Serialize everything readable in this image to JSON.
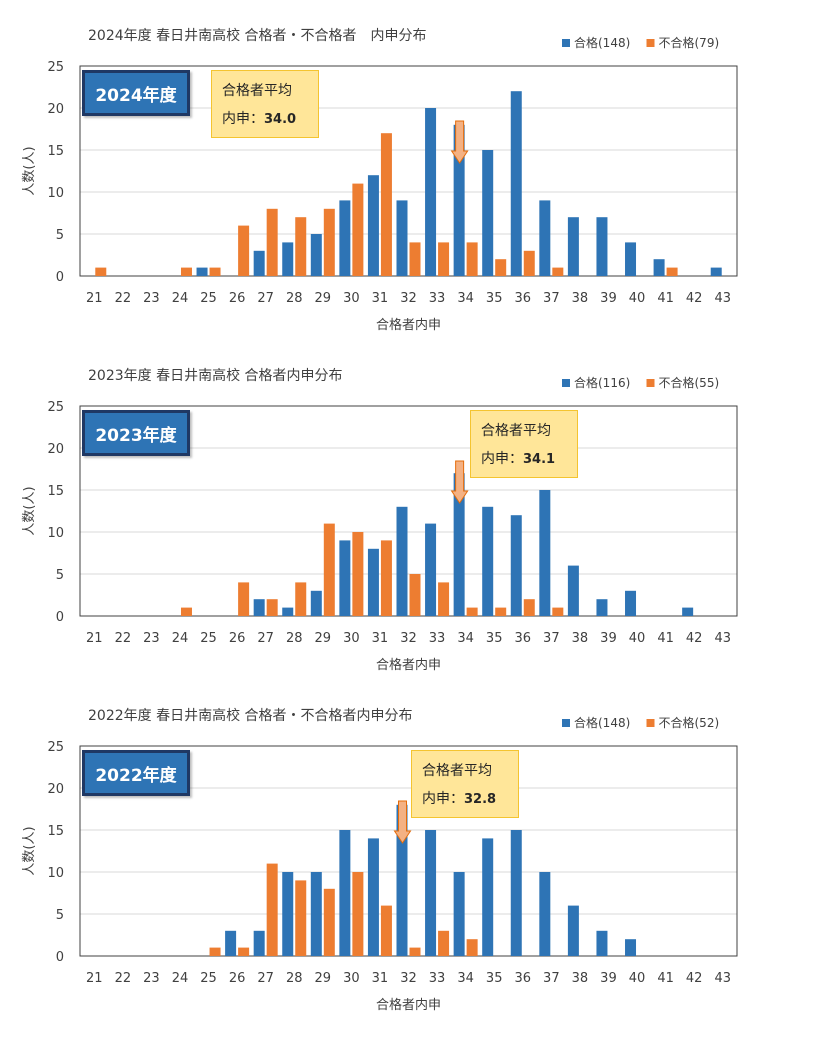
{
  "colors": {
    "pass": "#2e74b5",
    "fail": "#ed7d31",
    "badge": "#2e74b5",
    "avg_box": "#ffe699",
    "arrow": "#f4b183"
  },
  "chart_data": [
    {
      "type": "bar",
      "title": "2024年度 春日井南高校 合格者・不合格者　内申分布",
      "badge": "2024年度",
      "avg_label": "合格者平均",
      "avg_value_label": "内申：",
      "avg_value": "34.0",
      "xlabel": "合格者内申",
      "ylabel": "人数(人)",
      "ylim": [
        0,
        25
      ],
      "yticks": [
        "0",
        "5",
        "10",
        "15",
        "20",
        "25"
      ],
      "categories": [
        "21",
        "22",
        "23",
        "24",
        "25",
        "26",
        "27",
        "28",
        "29",
        "30",
        "31",
        "32",
        "33",
        "34",
        "35",
        "36",
        "37",
        "38",
        "39",
        "40",
        "41",
        "42",
        "43"
      ],
      "series": [
        {
          "name": "合格(148)",
          "values": [
            0,
            0,
            0,
            0,
            1,
            0,
            3,
            4,
            5,
            9,
            12,
            9,
            20,
            18,
            15,
            22,
            9,
            7,
            7,
            4,
            2,
            0,
            1
          ]
        },
        {
          "name": "不合格(79)",
          "values": [
            1,
            0,
            0,
            1,
            1,
            6,
            8,
            7,
            8,
            11,
            17,
            4,
            4,
            4,
            2,
            3,
            1,
            0,
            0,
            0,
            1,
            0,
            0
          ]
        }
      ],
      "legend": "top-right",
      "grid": true
    },
    {
      "type": "bar",
      "title": "2023年度 春日井南高校 合格者内申分布",
      "badge": "2023年度",
      "avg_label": "合格者平均",
      "avg_value_label": "内申：",
      "avg_value": "34.1",
      "xlabel": "合格者内申",
      "ylabel": "人数(人)",
      "ylim": [
        0,
        25
      ],
      "yticks": [
        "0",
        "5",
        "10",
        "15",
        "20",
        "25"
      ],
      "categories": [
        "21",
        "22",
        "23",
        "24",
        "25",
        "26",
        "27",
        "28",
        "29",
        "30",
        "31",
        "32",
        "33",
        "34",
        "35",
        "36",
        "37",
        "38",
        "39",
        "40",
        "41",
        "42",
        "43"
      ],
      "series": [
        {
          "name": "合格(116)",
          "values": [
            0,
            0,
            0,
            0,
            0,
            0,
            2,
            1,
            3,
            9,
            8,
            13,
            11,
            17,
            13,
            12,
            15,
            6,
            2,
            3,
            0,
            1,
            0
          ]
        },
        {
          "name": "不合格(55)",
          "values": [
            0,
            0,
            0,
            1,
            0,
            4,
            2,
            4,
            11,
            10,
            9,
            5,
            4,
            1,
            1,
            2,
            1,
            0,
            0,
            0,
            0,
            0,
            0
          ]
        }
      ],
      "legend": "top-right",
      "grid": true
    },
    {
      "type": "bar",
      "title": "2022年度 春日井南高校 合格者・不合格者内申分布",
      "badge": "2022年度",
      "avg_label": "合格者平均",
      "avg_value_label": "内申：",
      "avg_value": "32.8",
      "xlabel": "合格者内申",
      "ylabel": "人数(人)",
      "ylim": [
        0,
        25
      ],
      "yticks": [
        "0",
        "5",
        "10",
        "15",
        "20",
        "25"
      ],
      "categories": [
        "21",
        "22",
        "23",
        "24",
        "25",
        "26",
        "27",
        "28",
        "29",
        "30",
        "31",
        "32",
        "33",
        "34",
        "35",
        "36",
        "37",
        "38",
        "39",
        "40",
        "41",
        "42",
        "43"
      ],
      "series": [
        {
          "name": "合格(148)",
          "values": [
            0,
            0,
            0,
            0,
            0,
            3,
            3,
            10,
            10,
            15,
            14,
            18,
            15,
            10,
            14,
            15,
            10,
            6,
            3,
            2,
            0,
            0,
            0
          ]
        },
        {
          "name": "不合格(52)",
          "values": [
            0,
            0,
            0,
            0,
            1,
            1,
            11,
            9,
            8,
            10,
            6,
            1,
            3,
            2,
            0,
            0,
            0,
            0,
            0,
            0,
            0,
            0,
            0
          ]
        }
      ],
      "legend": "top-right",
      "grid": true
    }
  ]
}
